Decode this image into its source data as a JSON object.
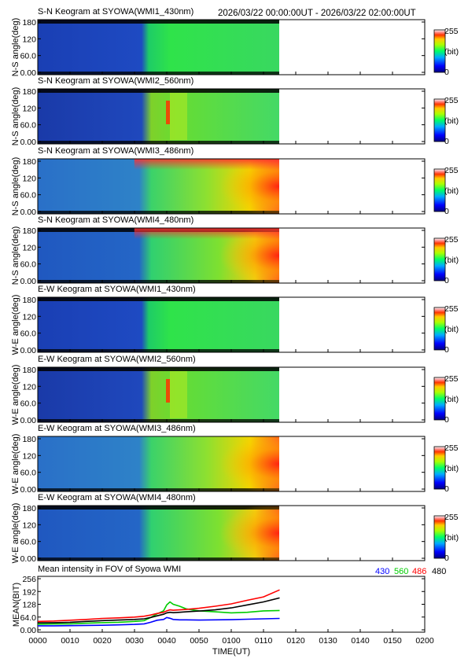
{
  "header": {
    "date_range": "2026/03/22 00:00:00UT - 2026/03/22 02:00:00UT"
  },
  "colorbar": {
    "max_label": "255",
    "unit_label": "(bit)",
    "min_label": "0"
  },
  "colors": {
    "c430": "#0000ff",
    "c560": "#00cc00",
    "c486": "#ff0000",
    "c480": "#000000"
  },
  "keograms": [
    {
      "title": "S-N Keogram at SYOWA(WMI1_430nm)",
      "ylabel": "N-S angle(deg)",
      "yticks": [
        "180",
        "120",
        "60.0",
        "0.00"
      ],
      "style": "430"
    },
    {
      "title": "S-N Keogram at SYOWA(WMI2_560nm)",
      "ylabel": "N-S angle(deg)",
      "yticks": [
        "180",
        "120",
        "60.0",
        "0.00"
      ],
      "style": "560"
    },
    {
      "title": "S-N Keogram at SYOWA(WMI3_486nm)",
      "ylabel": "N-S angle(deg)",
      "yticks": [
        "180",
        "120",
        "60.0",
        "0.00"
      ],
      "style": "486"
    },
    {
      "title": "S-N Keogram at SYOWA(WMI4_480nm)",
      "ylabel": "N-S angle(deg)",
      "yticks": [
        "180",
        "120",
        "60.0",
        "0.00"
      ],
      "style": "480"
    },
    {
      "title": "E-W Keogram at SYOWA(WMI1_430nm)",
      "ylabel": "W-E angle(deg)",
      "yticks": [
        "180",
        "120",
        "60.0",
        "0.00"
      ],
      "style": "430"
    },
    {
      "title": "E-W Keogram at SYOWA(WMI2_560nm)",
      "ylabel": "W-E angle(deg)",
      "yticks": [
        "180",
        "120",
        "60.0",
        "0.00"
      ],
      "style": "560"
    },
    {
      "title": "E-W Keogram at SYOWA(WMI3_486nm)",
      "ylabel": "W-E angle(deg)",
      "yticks": [
        "180",
        "120",
        "60.0",
        "0.00"
      ],
      "style": "486"
    },
    {
      "title": "E-W Keogram at SYOWA(WMI4_480nm)",
      "ylabel": "W-E angle(deg)",
      "yticks": [
        "180",
        "120",
        "60.0",
        "0.00"
      ],
      "style": "480"
    }
  ],
  "chart_data": {
    "type": "line",
    "title": "Mean intensity in FOV of Syowa WMI",
    "xlabel": "TIME(UT)",
    "ylabel": "MEAN(BIT)",
    "x_ticks": [
      "0000",
      "0010",
      "0020",
      "0030",
      "0040",
      "0050",
      "0100",
      "0110",
      "0120",
      "0130",
      "0140",
      "0150",
      "0200"
    ],
    "y_ticks": [
      "256",
      "192",
      "128",
      "64.0",
      "0.00"
    ],
    "xlim": [
      0,
      120
    ],
    "ylim": [
      0,
      256
    ],
    "legend": [
      "430",
      "560",
      "486",
      "480"
    ],
    "x": [
      0,
      5,
      10,
      15,
      20,
      25,
      30,
      33,
      35,
      37,
      39,
      40,
      41,
      42,
      44,
      46,
      50,
      55,
      60,
      65,
      70,
      75
    ],
    "series": [
      {
        "name": "430",
        "color": "#0000ff",
        "values": [
          20,
          20,
          21,
          22,
          23,
          25,
          27,
          30,
          38,
          48,
          52,
          62,
          58,
          52,
          50,
          50,
          49,
          50,
          51,
          53,
          55,
          57
        ]
      },
      {
        "name": "560",
        "color": "#00cc00",
        "values": [
          28,
          29,
          30,
          33,
          36,
          38,
          42,
          46,
          62,
          80,
          95,
          125,
          140,
          128,
          118,
          105,
          95,
          90,
          85,
          88,
          95,
          97
        ]
      },
      {
        "name": "486",
        "color": "#ff0000",
        "values": [
          42,
          44,
          48,
          52,
          57,
          60,
          64,
          68,
          74,
          82,
          88,
          95,
          100,
          98,
          100,
          102,
          108,
          118,
          130,
          148,
          165,
          200
        ]
      },
      {
        "name": "480",
        "color": "#000000",
        "values": [
          35,
          36,
          38,
          42,
          46,
          49,
          52,
          55,
          62,
          70,
          78,
          85,
          88,
          86,
          88,
          90,
          94,
          100,
          110,
          125,
          140,
          160
        ]
      }
    ]
  }
}
